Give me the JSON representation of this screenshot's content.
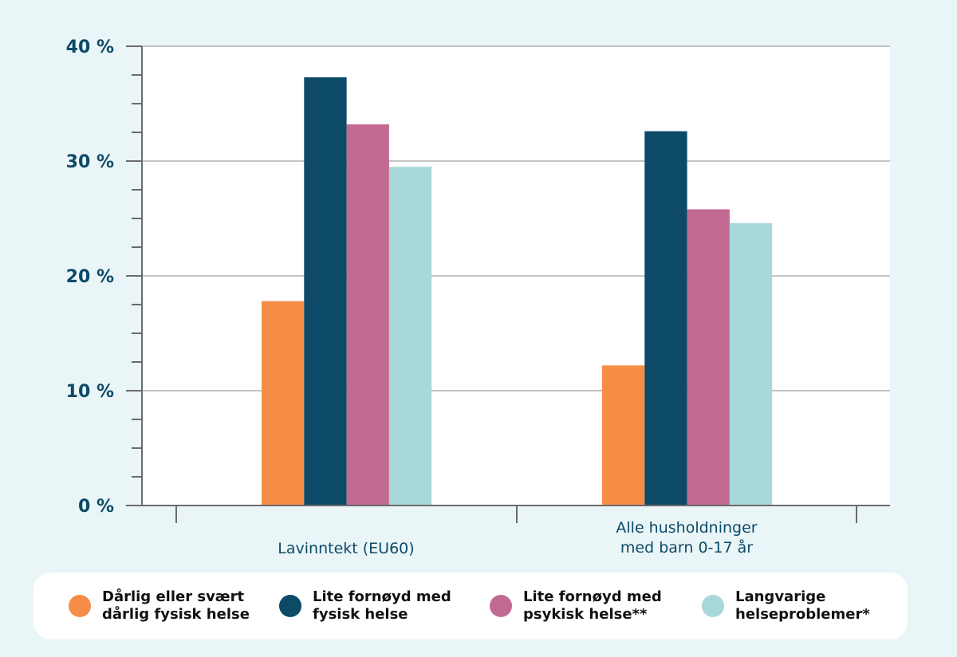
{
  "chart_data": {
    "type": "bar",
    "title": "",
    "xlabel": "",
    "ylabel": "",
    "ylim": [
      0,
      40
    ],
    "y_ticks": [
      "0 %",
      "10 %",
      "20 %",
      "30 %",
      "40 %"
    ],
    "y_tick_values": [
      0,
      10,
      20,
      30,
      40
    ],
    "grid": true,
    "categories": [
      "Lavinntekt (EU60)",
      "Alle husholdninger\nmed barn 0-17 år"
    ],
    "series": [
      {
        "name": "Dårlig eller svært\ndårlig fysisk helse",
        "color": "#f58d47",
        "values": [
          17.8,
          12.2
        ]
      },
      {
        "name": "Lite fornøyd med\nfysisk helse",
        "color": "#0c4a68",
        "values": [
          37.3,
          32.6
        ]
      },
      {
        "name": "Lite fornøyd med\npsykisk helse**",
        "color": "#c36a92",
        "values": [
          33.2,
          25.8
        ]
      },
      {
        "name": "Langvarige\nhelseproblemer*",
        "color": "#a8d8d9",
        "values": [
          29.5,
          24.6
        ]
      }
    ],
    "legend_position": "bottom"
  }
}
